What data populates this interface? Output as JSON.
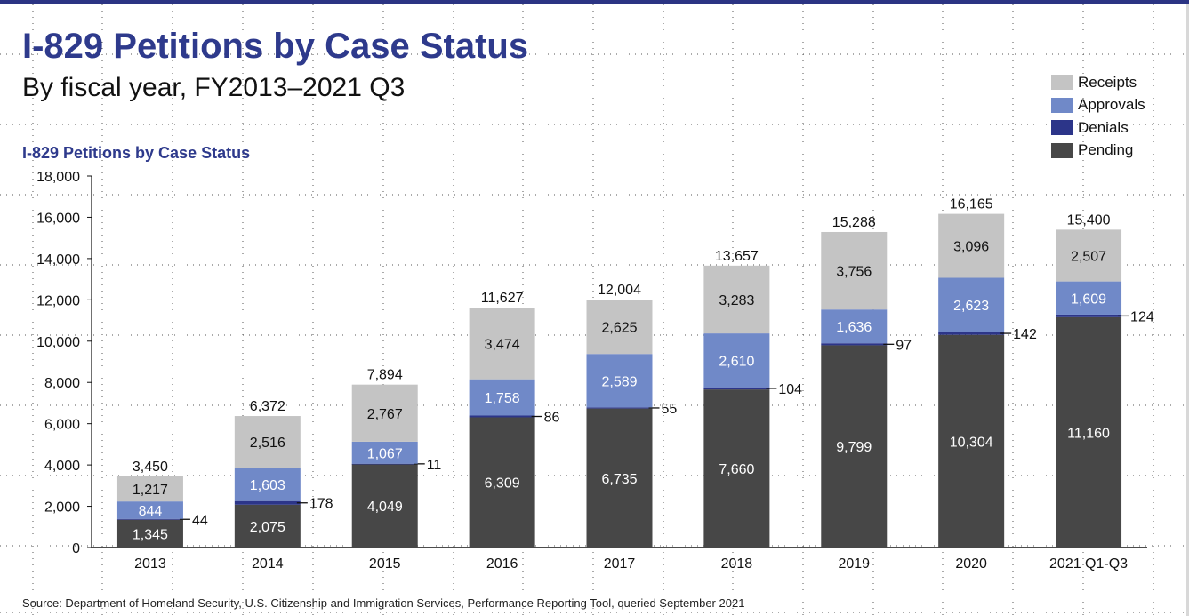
{
  "header": {
    "title": "I-829 Petitions by Case Status",
    "subtitle": "By fiscal year, FY2013–2021 Q3"
  },
  "footer": {
    "source": "Source: Department of Homeland Security, U.S. Citizenship and Immigration Services, Performance Reporting Tool, queried September 2021"
  },
  "colors": {
    "brand": "#2b3483",
    "title": "#2e3a8c",
    "receipts": "#c4c4c4",
    "approvals": "#7089c8",
    "denials": "#2c3589",
    "pending": "#474747"
  },
  "legend": [
    {
      "name": "Receipts",
      "key": "receipts"
    },
    {
      "name": "Approvals",
      "key": "approvals"
    },
    {
      "name": "Denials",
      "key": "denials"
    },
    {
      "name": "Pending",
      "key": "pending"
    }
  ],
  "chart_data": {
    "type": "bar",
    "stacked": true,
    "title": "I-829 Petitions by Case Status",
    "xlabel": "",
    "ylabel": "",
    "ylim": [
      0,
      18000
    ],
    "yticks": [
      0,
      2000,
      4000,
      6000,
      8000,
      10000,
      12000,
      14000,
      16000,
      18000
    ],
    "ytick_labels": [
      "0",
      "2,000",
      "4,000",
      "6,000",
      "8,000",
      "10,000",
      "12,000",
      "14,000",
      "16,000",
      "18,000"
    ],
    "grid": true,
    "legend_position": "top-right",
    "categories": [
      "2013",
      "2014",
      "2015",
      "2016",
      "2017",
      "2018",
      "2019",
      "2020",
      "2021 Q1-Q3"
    ],
    "series": [
      {
        "name": "Pending",
        "key": "pending",
        "values": [
          1345,
          2075,
          4049,
          6309,
          6735,
          7660,
          9799,
          10304,
          11160
        ],
        "labels": [
          "1,345",
          "2,075",
          "4,049",
          "6,309",
          "6,735",
          "7,660",
          "9,799",
          "10,304",
          "11,160"
        ]
      },
      {
        "name": "Denials",
        "key": "denials",
        "values": [
          44,
          178,
          11,
          86,
          55,
          104,
          97,
          142,
          124
        ],
        "labels": [
          "44",
          "178",
          "11",
          "86",
          "55",
          "104",
          "97",
          "142",
          "124"
        ]
      },
      {
        "name": "Approvals",
        "key": "approvals",
        "values": [
          844,
          1603,
          1067,
          1758,
          2589,
          2610,
          1636,
          2623,
          1609
        ],
        "labels": [
          "844",
          "1,603",
          "1,067",
          "1,758",
          "2,589",
          "2,610",
          "1,636",
          "2,623",
          "1,609"
        ]
      },
      {
        "name": "Receipts",
        "key": "receipts",
        "values": [
          1217,
          2516,
          2767,
          3474,
          2625,
          3283,
          3756,
          3096,
          2507
        ],
        "labels": [
          "1,217",
          "2,516",
          "2,767",
          "3,474",
          "2,625",
          "3,283",
          "3,756",
          "3,096",
          "2,507"
        ]
      }
    ],
    "totals": [
      3450,
      6372,
      7894,
      11627,
      12004,
      13657,
      15288,
      16165,
      15400
    ],
    "total_labels": [
      "3,450",
      "6,372",
      "7,894",
      "11,627",
      "12,004",
      "13,657",
      "15,288",
      "16,165",
      "15,400"
    ]
  }
}
